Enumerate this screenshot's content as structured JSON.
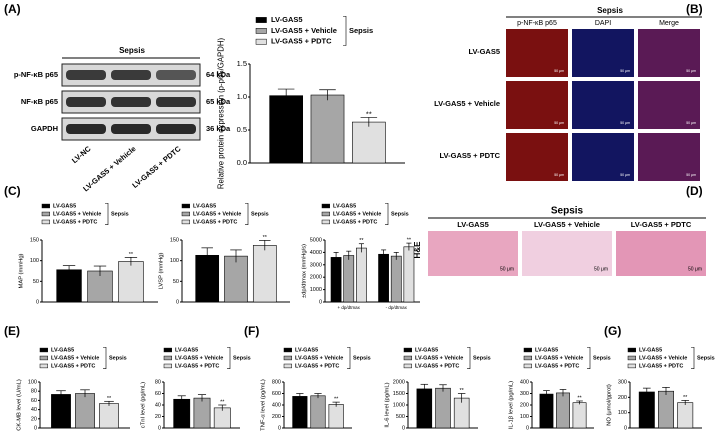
{
  "panel_labels": [
    "(A)",
    "(B)",
    "(C)",
    "(D)",
    "(E)",
    "(F)",
    "(G)"
  ],
  "blot": {
    "group": "Sepsis",
    "rows": [
      "p-NF-κB p65",
      "NF-κB p65",
      "GAPDH"
    ],
    "sizes": [
      "64 kDa",
      "65 kDa",
      "36 kDa"
    ],
    "lanes": [
      "LV-NC",
      "LV-GAS5 + Vehicle",
      "LV-GAS5 + PDTC"
    ]
  },
  "immunofluorescence": {
    "group": "Sepsis",
    "columns": [
      "p-NF-κB p65",
      "DAPI",
      "Merge"
    ],
    "rows": [
      "LV-GAS5",
      "LV-GAS5 + Vehicle",
      "LV-GAS5 + PDTC"
    ],
    "scale": "50 μm"
  },
  "histology": {
    "group": "Sepsis",
    "stain": "H&E",
    "columns": [
      "LV-GAS5",
      "LV-GAS5 + Vehicle",
      "LV-GAS5 + PDTC"
    ],
    "scale": "50 μm"
  },
  "chart_data": [
    {
      "type": "bar",
      "ylabel": "Relative protein expression (p-p65/GAPDH)",
      "group_label": "Sepsis",
      "categories": [
        null
      ],
      "ylim": [
        0,
        1.5
      ],
      "yticks": [
        {
          "value": 0,
          "label": "0.0"
        },
        0.5,
        {
          "value": 1,
          "label": "1.0"
        },
        1.5
      ],
      "series": [
        {
          "name": "LV-GAS5",
          "color": "#000000",
          "values": [
            1.02
          ],
          "errors": [
            0.1
          ]
        },
        {
          "name": "LV-GAS5 + Vehicle",
          "color": "#a6a6a6",
          "values": [
            1.03
          ],
          "errors": [
            0.08
          ]
        },
        {
          "name": "LV-GAS5 + PDTC",
          "color": "#e0e0e0",
          "values": [
            0.62
          ],
          "errors": [
            0.07
          ],
          "significance": [
            "**"
          ]
        }
      ]
    },
    {
      "type": "bar",
      "ylabel": "MAP (mmHg)",
      "group_label": "Sepsis",
      "categories": [
        null
      ],
      "ylim": [
        0,
        150
      ],
      "yticks": [
        0,
        50,
        100,
        150
      ],
      "series": [
        {
          "name": "LV-GAS5",
          "color": "#000000",
          "values": [
            78
          ],
          "errors": [
            10
          ]
        },
        {
          "name": "LV-GAS5 + Vehicle",
          "color": "#a6a6a6",
          "values": [
            75
          ],
          "errors": [
            12
          ]
        },
        {
          "name": "LV-GAS5 + PDTC",
          "color": "#e0e0e0",
          "values": [
            98
          ],
          "errors": [
            10
          ],
          "significance": [
            "**"
          ]
        }
      ]
    },
    {
      "type": "bar",
      "ylabel": "LVSP (mmHg)",
      "group_label": "Sepsis",
      "categories": [
        null
      ],
      "ylim": [
        0,
        150
      ],
      "yticks": [
        0,
        50,
        100,
        150
      ],
      "series": [
        {
          "name": "LV-GAS5",
          "color": "#000000",
          "values": [
            113
          ],
          "errors": [
            18
          ]
        },
        {
          "name": "LV-GAS5 + Vehicle",
          "color": "#a6a6a6",
          "values": [
            111
          ],
          "errors": [
            15
          ]
        },
        {
          "name": "LV-GAS5 + PDTC",
          "color": "#e0e0e0",
          "values": [
            137
          ],
          "errors": [
            12
          ],
          "significance": [
            "**"
          ]
        }
      ]
    },
    {
      "type": "bar",
      "ylabel": "±dp/dtmax (mmHg/s)",
      "group_label": "Sepsis",
      "categories": [
        "+ dp/dtmax",
        "- dp/dtmax"
      ],
      "ylim": [
        0,
        5000
      ],
      "yticks": [
        0,
        1000,
        2000,
        3000,
        4000,
        5000
      ],
      "series": [
        {
          "name": "LV-GAS5",
          "color": "#000000",
          "values": [
            3600,
            3850
          ],
          "errors": [
            400,
            350
          ]
        },
        {
          "name": "LV-GAS5 + Vehicle",
          "color": "#a6a6a6",
          "values": [
            3750,
            3700
          ],
          "errors": [
            350,
            300
          ]
        },
        {
          "name": "LV-GAS5 + PDTC",
          "color": "#e0e0e0",
          "values": [
            4350,
            4450
          ],
          "errors": [
            350,
            300
          ],
          "significance": [
            "**",
            "**"
          ]
        }
      ]
    },
    {
      "type": "bar",
      "ylabel": "CK-MB level (U/mL)",
      "group_label": "Sepsis",
      "categories": [
        null
      ],
      "ylim": [
        0,
        100
      ],
      "yticks": [
        0,
        20,
        40,
        60,
        80,
        100
      ],
      "series": [
        {
          "name": "LV-GAS5",
          "color": "#000000",
          "values": [
            73
          ],
          "errors": [
            8
          ]
        },
        {
          "name": "LV-GAS5 + Vehicle",
          "color": "#a6a6a6",
          "values": [
            75
          ],
          "errors": [
            8
          ]
        },
        {
          "name": "LV-GAS5 + PDTC",
          "color": "#e0e0e0",
          "values": [
            53
          ],
          "errors": [
            5
          ],
          "significance": [
            "**"
          ]
        }
      ]
    },
    {
      "type": "bar",
      "ylabel": "cTnI level (pg/mL)",
      "group_label": "Sepsis",
      "categories": [
        null
      ],
      "ylim": [
        0,
        80
      ],
      "yticks": [
        0,
        20,
        40,
        60,
        80
      ],
      "series": [
        {
          "name": "LV-GAS5",
          "color": "#000000",
          "values": [
            50
          ],
          "errors": [
            6
          ]
        },
        {
          "name": "LV-GAS5 + Vehicle",
          "color": "#a6a6a6",
          "values": [
            52
          ],
          "errors": [
            6
          ]
        },
        {
          "name": "LV-GAS5 + PDTC",
          "color": "#e0e0e0",
          "values": [
            35
          ],
          "errors": [
            5
          ],
          "significance": [
            "**"
          ]
        }
      ]
    },
    {
      "type": "bar",
      "ylabel": "TNF-α level (pg/mL)",
      "group_label": "Sepsis",
      "categories": [
        null
      ],
      "ylim": [
        0,
        800
      ],
      "yticks": [
        0,
        200,
        400,
        600,
        800
      ],
      "series": [
        {
          "name": "LV-GAS5",
          "color": "#000000",
          "values": [
            550
          ],
          "errors": [
            50
          ]
        },
        {
          "name": "LV-GAS5 + Vehicle",
          "color": "#a6a6a6",
          "values": [
            560
          ],
          "errors": [
            40
          ]
        },
        {
          "name": "LV-GAS5 + PDTC",
          "color": "#e0e0e0",
          "values": [
            410
          ],
          "errors": [
            40
          ],
          "significance": [
            "**"
          ]
        }
      ]
    },
    {
      "type": "bar",
      "ylabel": "IL-6 level (pg/mL)",
      "group_label": "Sepsis",
      "categories": [
        null
      ],
      "ylim": [
        0,
        2000
      ],
      "yticks": [
        0,
        500,
        1000,
        1500,
        2000
      ],
      "series": [
        {
          "name": "LV-GAS5",
          "color": "#000000",
          "values": [
            1700
          ],
          "errors": [
            200
          ]
        },
        {
          "name": "LV-GAS5 + Vehicle",
          "color": "#a6a6a6",
          "values": [
            1730
          ],
          "errors": [
            150
          ]
        },
        {
          "name": "LV-GAS5 + PDTC",
          "color": "#e0e0e0",
          "values": [
            1300
          ],
          "errors": [
            200
          ],
          "significance": [
            "**"
          ]
        }
      ]
    },
    {
      "type": "bar",
      "ylabel": "IL-1β level (pg/mL)",
      "group_label": "Sepsis",
      "categories": [
        null
      ],
      "ylim": [
        0,
        400
      ],
      "yticks": [
        0,
        100,
        200,
        300,
        400
      ],
      "series": [
        {
          "name": "LV-GAS5",
          "color": "#000000",
          "values": [
            295
          ],
          "errors": [
            30
          ]
        },
        {
          "name": "LV-GAS5 + Vehicle",
          "color": "#a6a6a6",
          "values": [
            305
          ],
          "errors": [
            30
          ]
        },
        {
          "name": "LV-GAS5 + PDTC",
          "color": "#e0e0e0",
          "values": [
            220
          ],
          "errors": [
            15
          ],
          "significance": [
            "**"
          ]
        }
      ]
    },
    {
      "type": "bar",
      "ylabel": "NO (μmol/gprot)",
      "group_label": "Sepsis",
      "categories": [
        null
      ],
      "ylim": [
        0,
        300
      ],
      "yticks": [
        0,
        100,
        200,
        300
      ],
      "series": [
        {
          "name": "LV-GAS5",
          "color": "#000000",
          "values": [
            235
          ],
          "errors": [
            25
          ]
        },
        {
          "name": "LV-GAS5 + Vehicle",
          "color": "#a6a6a6",
          "values": [
            240
          ],
          "errors": [
            25
          ]
        },
        {
          "name": "LV-GAS5 + PDTC",
          "color": "#e0e0e0",
          "values": [
            165
          ],
          "errors": [
            15
          ],
          "significance": [
            "**"
          ]
        }
      ]
    }
  ]
}
